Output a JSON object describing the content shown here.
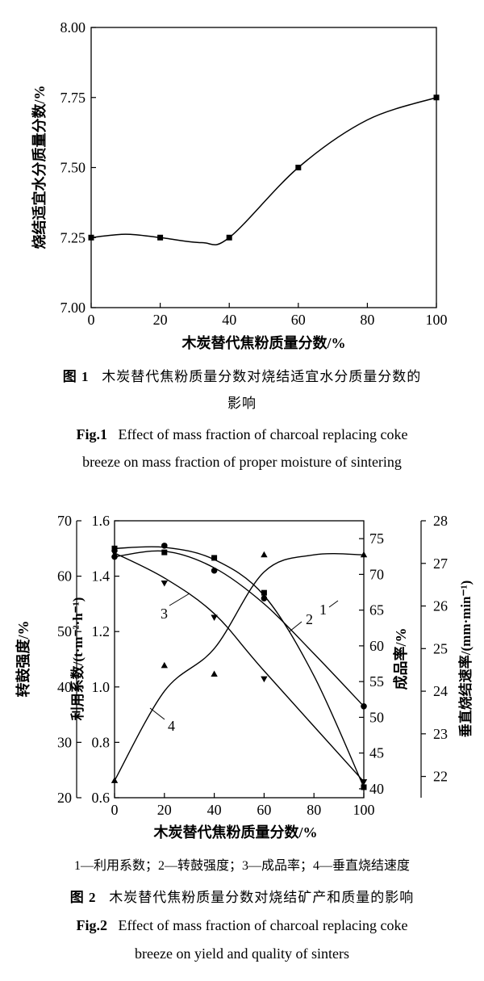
{
  "chart_data": [
    {
      "type": "line",
      "xlabel": "木炭替代焦粉质量分数/%",
      "ylabel": "烧结适宜水分质量分数/%",
      "xlim": [
        0,
        100
      ],
      "ylim": [
        7.0,
        8.0
      ],
      "x_ticks": [
        "0",
        "20",
        "40",
        "60",
        "80",
        "100"
      ],
      "y_ticks": [
        "7.00",
        "7.25",
        "7.50",
        "7.75",
        "8.00"
      ],
      "series": [
        {
          "x": [
            0,
            20,
            40,
            60,
            100
          ],
          "values": [
            7.25,
            7.25,
            7.25,
            7.5,
            7.75
          ],
          "marker": "square"
        }
      ],
      "caption_zh_label": "图 1",
      "caption_zh_line1": "木炭替代焦粉质量分数对烧结适宜水分质量分数的",
      "caption_zh_line2": "影响",
      "caption_en_label": "Fig.1",
      "caption_en_line1": "Effect of mass fraction of charcoal replacing coke",
      "caption_en_line2": "breeze on mass fraction of proper moisture of sintering"
    },
    {
      "type": "line",
      "xlabel": "木炭替代焦粉质量分数/%",
      "xlim": [
        0,
        100
      ],
      "x_ticks": [
        "0",
        "20",
        "40",
        "60",
        "80",
        "100"
      ],
      "axes": [
        {
          "label": "转鼓强度/%",
          "range": [
            20,
            70
          ],
          "ticks": [
            "20",
            "30",
            "40",
            "50",
            "60",
            "70"
          ]
        },
        {
          "label": "利用系数/(t·m⁻²·h⁻¹)",
          "range": [
            0.6,
            1.6
          ],
          "ticks": [
            "0.6",
            "0.8",
            "1.0",
            "1.2",
            "1.4",
            "1.6"
          ]
        },
        {
          "label": "成品率/%",
          "range": [
            38.75,
            77.5
          ],
          "ticks": [
            "40",
            "45",
            "50",
            "55",
            "60",
            "65",
            "70",
            "75"
          ]
        },
        {
          "label": "垂直烧结速率/(mm·min⁻¹)",
          "range": [
            21.5,
            28
          ],
          "ticks": [
            "22",
            "23",
            "24",
            "25",
            "26",
            "27",
            "28"
          ]
        }
      ],
      "series": [
        {
          "label": "1",
          "axis": 1,
          "marker": "circle",
          "x": [
            0,
            20,
            40,
            60,
            100
          ],
          "values": [
            1.47,
            1.51,
            1.42,
            1.32,
            0.93
          ]
        },
        {
          "label": "2",
          "axis": 0,
          "marker": "square",
          "x": [
            0,
            20,
            40,
            60,
            100
          ],
          "values": [
            65.0,
            64.3,
            63.3,
            57.0,
            21.9
          ]
        },
        {
          "label": "3",
          "axis": 2,
          "marker": "triangle-down",
          "x": [
            0,
            20,
            40,
            60,
            100
          ],
          "values": [
            73.0,
            68.8,
            64.0,
            55.4,
            41.0
          ]
        },
        {
          "label": "4",
          "axis": 3,
          "marker": "triangle-up",
          "x": [
            0,
            20,
            40,
            60,
            100
          ],
          "values": [
            21.9,
            24.6,
            24.4,
            27.2,
            27.2
          ]
        }
      ],
      "legend_text": "1—利用系数；2—转鼓强度；3—成品率；4—垂直烧结速度",
      "caption_zh_label": "图 2",
      "caption_zh_text": "木炭替代焦粉质量分数对烧结矿产和质量的影响",
      "caption_en_label": "Fig.2",
      "caption_en_line1": "Effect of mass fraction of charcoal replacing coke",
      "caption_en_line2": "breeze on yield and quality of sinters"
    }
  ]
}
